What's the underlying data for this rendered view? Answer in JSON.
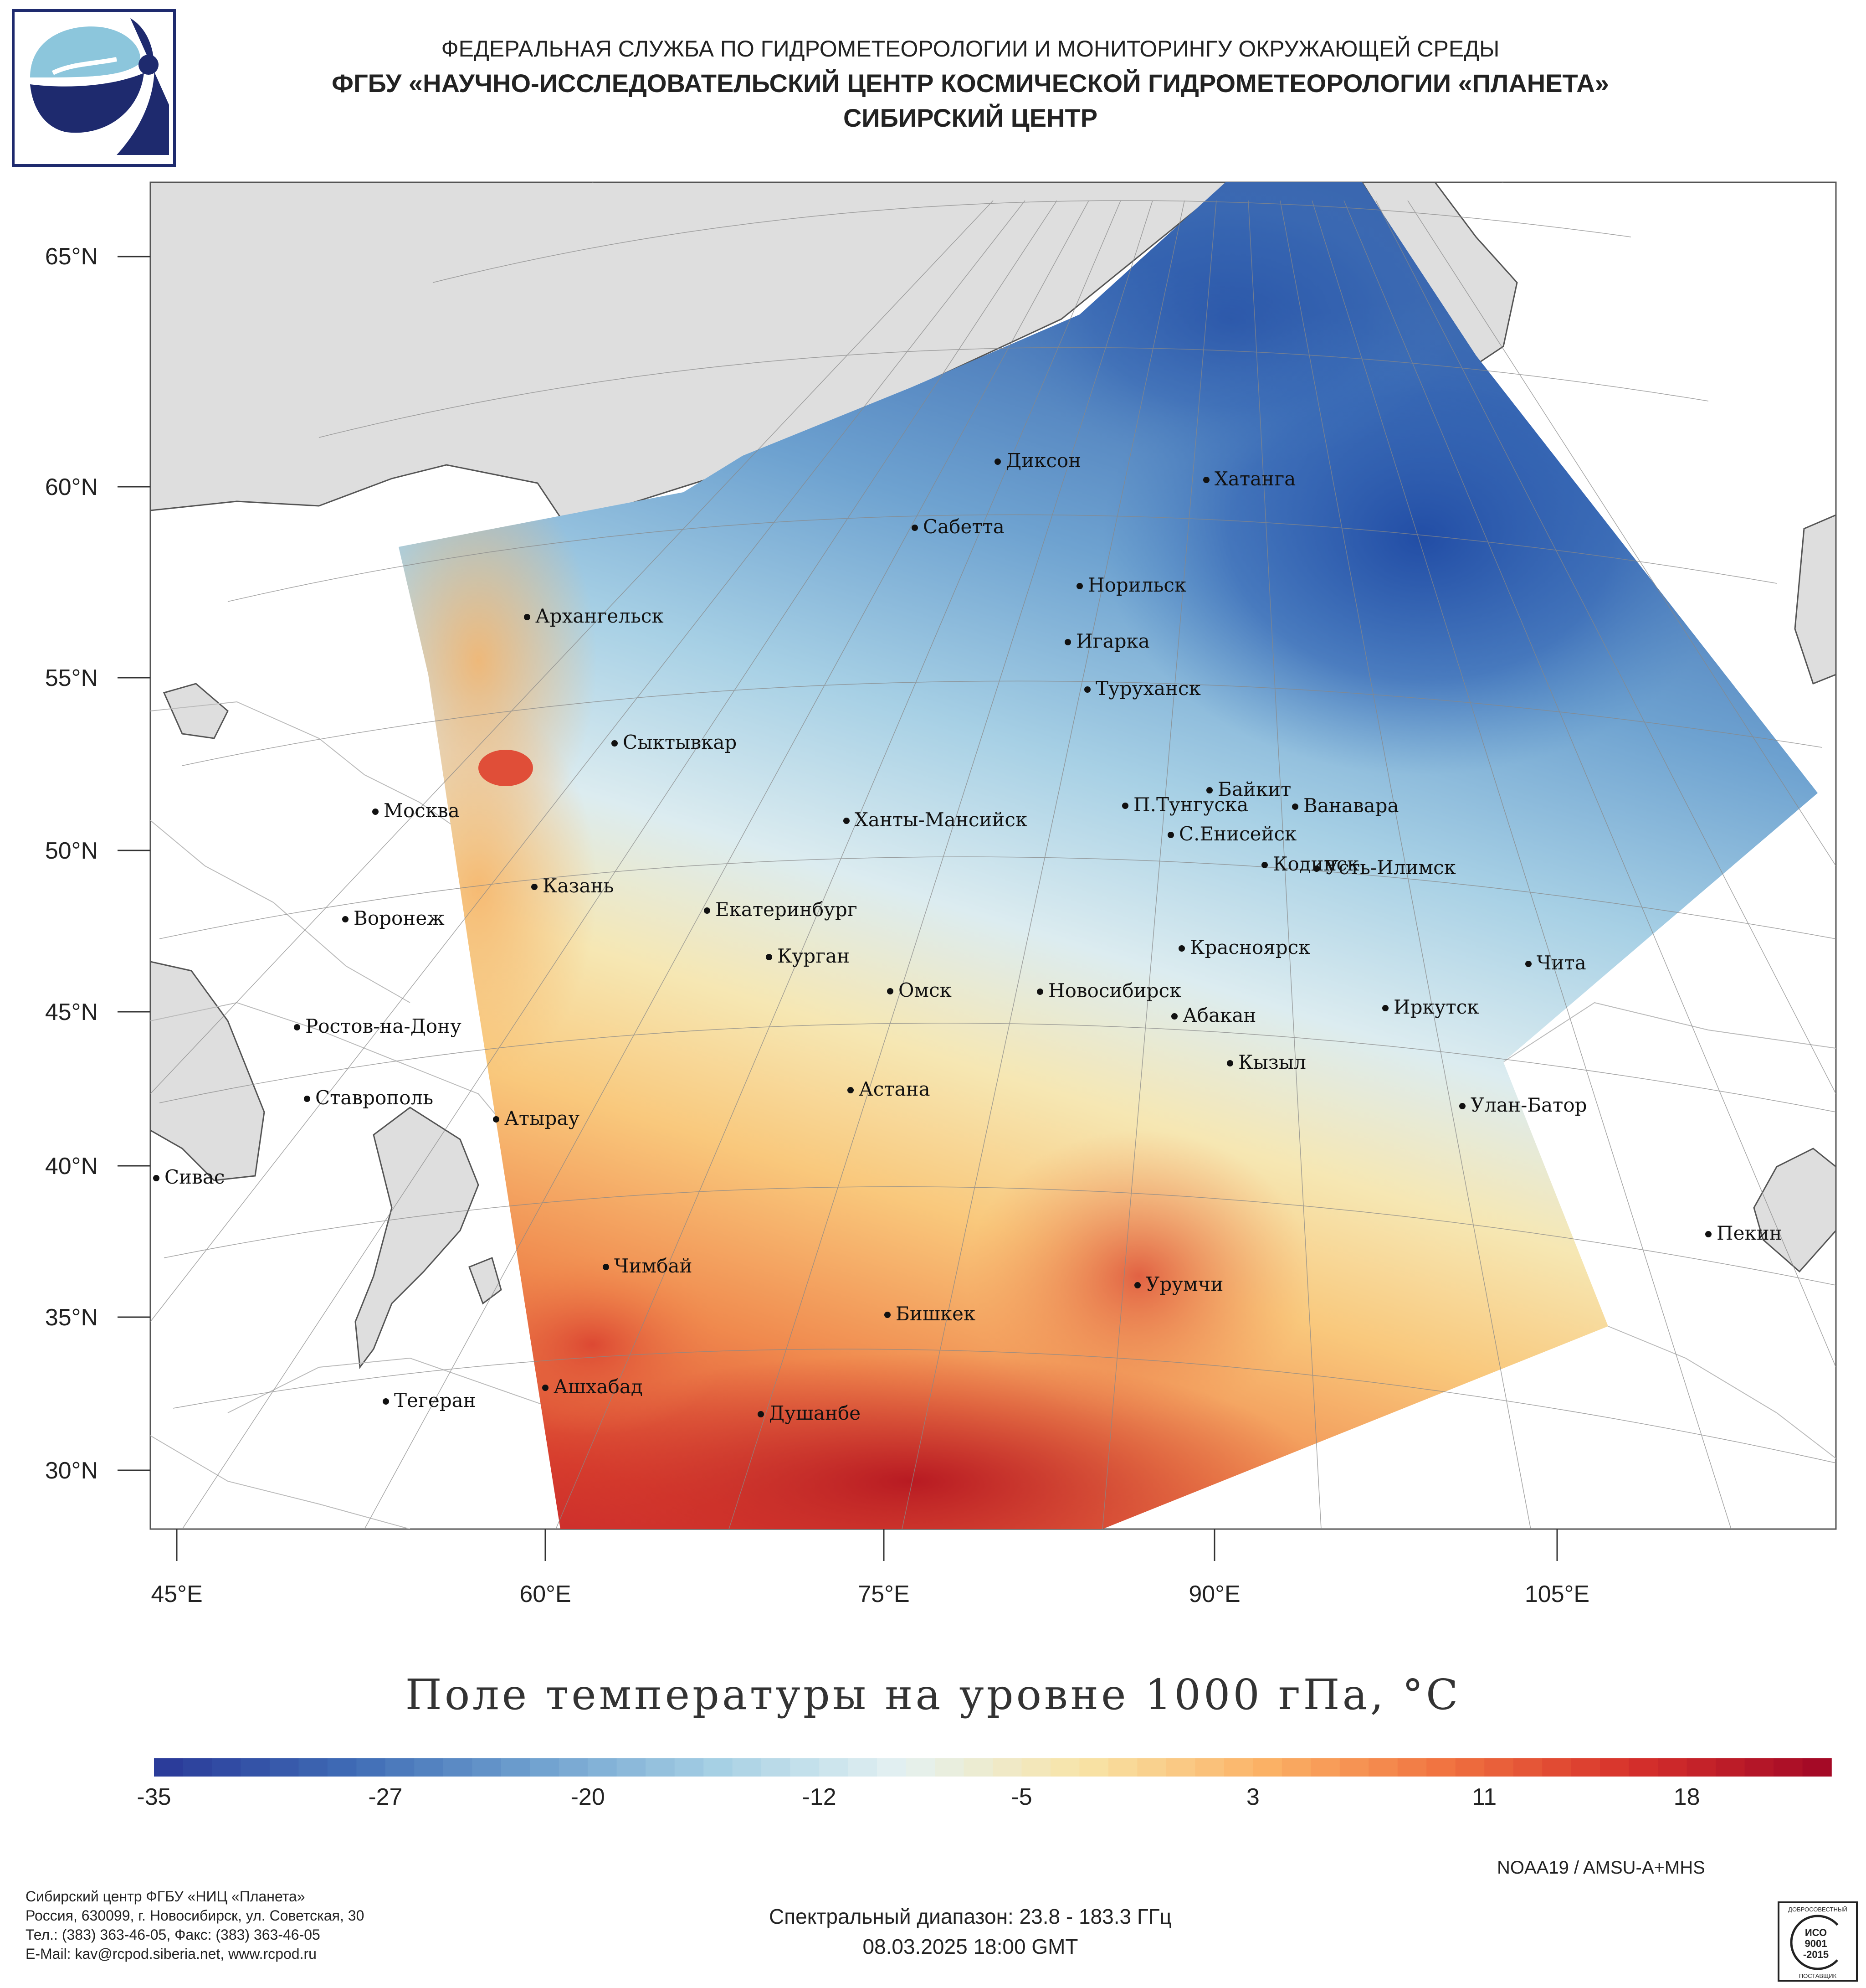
{
  "header": {
    "agency": "ФЕДЕРАЛЬНАЯ СЛУЖБА ПО ГИДРОМЕТЕОРОЛОГИИ И МОНИТОРИНГУ ОКРУЖАЮЩЕЙ СРЕДЫ",
    "institute": "ФГБУ «НАУЧНО-ИССЛЕДОВАТЕЛЬСКИЙ ЦЕНТР КОСМИЧЕСКОЙ ГИДРОМЕТЕОРОЛОГИИ «ПЛАНЕТА»",
    "center": "СИБИРСКИЙ ЦЕНТР"
  },
  "map": {
    "lat_labels": [
      "65°N",
      "60°N",
      "55°N",
      "50°N",
      "45°N",
      "40°N",
      "35°N",
      "30°N"
    ],
    "lon_labels": [
      "45°E",
      "60°E",
      "75°E",
      "90°E",
      "105°E"
    ],
    "cities": [
      {
        "name": "Диксон"
      },
      {
        "name": "Хатанга"
      },
      {
        "name": "Сабетта"
      },
      {
        "name": "Норильск"
      },
      {
        "name": "Архангельск"
      },
      {
        "name": "Игарка"
      },
      {
        "name": "Туруханск"
      },
      {
        "name": "Сыктывкар"
      },
      {
        "name": "Байкит"
      },
      {
        "name": "П.Тунгуска"
      },
      {
        "name": "Ванавара"
      },
      {
        "name": "Москва"
      },
      {
        "name": "Ханты-Мансийск"
      },
      {
        "name": "С.Енисейск"
      },
      {
        "name": "Кодинск"
      },
      {
        "name": "Усть-Илимск"
      },
      {
        "name": "Казань"
      },
      {
        "name": "Екатеринбург"
      },
      {
        "name": "Воронеж"
      },
      {
        "name": "Красноярск"
      },
      {
        "name": "Курган"
      },
      {
        "name": "Чита"
      },
      {
        "name": "Омск"
      },
      {
        "name": "Новосибирск"
      },
      {
        "name": "Иркутск"
      },
      {
        "name": "Абакан"
      },
      {
        "name": "Ростов-на-Дону"
      },
      {
        "name": "Кызыл"
      },
      {
        "name": "Астана"
      },
      {
        "name": "Ставрополь"
      },
      {
        "name": "Улан-Батор"
      },
      {
        "name": "Атырау"
      },
      {
        "name": "Сивас"
      },
      {
        "name": "Пекин"
      },
      {
        "name": "Чимбай"
      },
      {
        "name": "Урумчи"
      },
      {
        "name": "Бишкек"
      },
      {
        "name": "Ашхабад"
      },
      {
        "name": "Тегеран"
      },
      {
        "name": "Душанбе"
      }
    ]
  },
  "title": "Поле температуры на уровне 1000 гПа, °C",
  "colorbar": {
    "min": -35,
    "max": 23,
    "ticks": [
      "-35",
      "-27",
      "-20",
      "-12",
      "-5",
      "3",
      "11",
      "18"
    ],
    "tick_values": [
      -35,
      -27,
      -20,
      -12,
      -5,
      3,
      11,
      18
    ],
    "colors": [
      "#2b3c9a",
      "#3f6cb5",
      "#6fa0cf",
      "#a6d0e4",
      "#e4f1f2",
      "#f8e4a6",
      "#fbb165",
      "#f0713f",
      "#d6302b",
      "#a50a26"
    ]
  },
  "footer": {
    "lines": [
      "Сибирский центр ФГБУ «НИЦ «Планета»",
      "Россия, 630099, г. Новосибирск, ул. Советская, 30",
      "Тел.: (383) 363-46-05, Факс: (383) 363-46-05",
      "E-Mail: kav@rcpod.siberia.net, www.rcpod.ru"
    ],
    "satellite": "NOAA19 / AMSU-A+MHS",
    "spectral": "Спектральный диапазон: 23.8 - 183.3 ГГц",
    "datetime": "08.03.2025 18:00 GMT"
  },
  "iso_badge": {
    "top": "ДОБРОСОВЕСТНЫЙ",
    "mid": "ИСО",
    "num": "9001",
    "year": "-2015",
    "bottom": "ПОСТАВЩИК"
  }
}
